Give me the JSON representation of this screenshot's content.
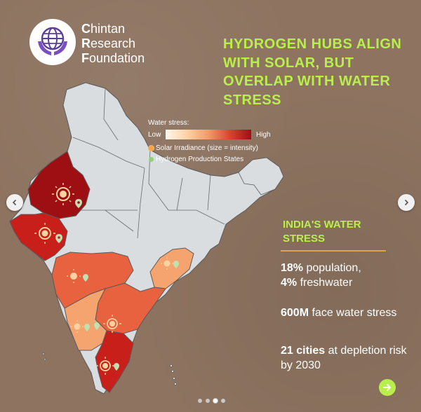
{
  "org": {
    "name_line1": "Chintan",
    "name_line2": "Research",
    "name_line3": "Foundation"
  },
  "headline": "HYDROGEN HUBS ALIGN WITH SOLAR, BUT OVERLAP WITH WATER STRESS",
  "legend": {
    "title": "Water stress:",
    "low": "Low",
    "high": "High",
    "solar": "Solar Irradiance (size = intensity)",
    "hydrogen": "Hydrogen Production States"
  },
  "stress_panel": {
    "title": "INDIA'S WATER STRESS",
    "stat1_bold_a": "18%",
    "stat1_text_a": " population,",
    "stat1_bold_b": "4%",
    "stat1_text_b": " freshwater",
    "stat2_bold": "600M",
    "stat2_text": " face water stress",
    "stat3_bold": "21 cities",
    "stat3_text": " at depletion risk by 2030"
  },
  "carousel": {
    "slide_count": 4,
    "active_index": 2
  },
  "colors": {
    "background": "#8d7360",
    "accent": "#b9ef4c",
    "map_base": "#d9dde0",
    "stress_highest": "#9e0f14",
    "stress_high": "#c91f1a",
    "stress_medium": "#e9623f",
    "stress_low": "#f5a36f"
  },
  "icons": {
    "nav_prev": "chevron-left-icon",
    "nav_next": "chevron-right-icon",
    "next_slide": "arrow-right-icon",
    "solar": "sun-icon",
    "hydrogen": "map-pin-icon"
  }
}
